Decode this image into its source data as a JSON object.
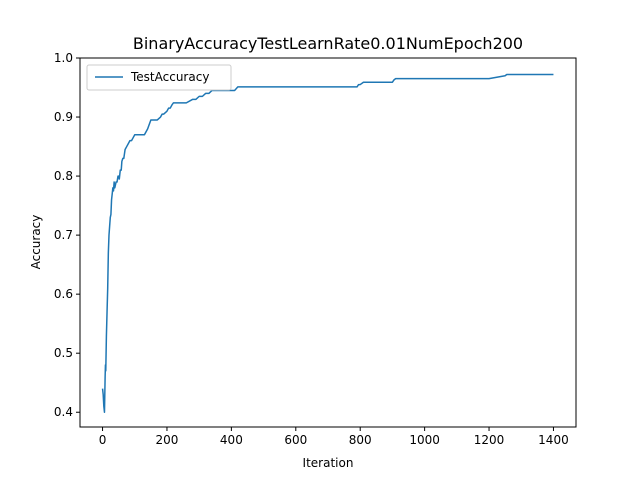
{
  "chart_data": {
    "type": "line",
    "title": "BinaryAccuracyTestLearnRate0.01NumEpoch200",
    "xlabel": "Iteration",
    "ylabel": "Accuracy",
    "xlim": [
      -70,
      1470
    ],
    "ylim": [
      0.375,
      1.0
    ],
    "xticks": [
      0,
      200,
      400,
      600,
      800,
      1000,
      1200,
      1400
    ],
    "yticks": [
      0.4,
      0.5,
      0.6,
      0.7,
      0.8,
      0.9,
      1.0
    ],
    "xtick_labels": [
      "0",
      "200",
      "400",
      "600",
      "800",
      "1000",
      "1200",
      "1400"
    ],
    "ytick_labels": [
      "0.4",
      "0.5",
      "0.6",
      "0.7",
      "0.8",
      "0.9",
      "1.0"
    ],
    "grid": false,
    "legend_position": "top-left",
    "series": [
      {
        "name": "TestAccuracy",
        "color": "#1f77b4",
        "x": [
          0,
          2,
          4,
          6,
          8,
          9,
          10,
          12,
          14,
          16,
          18,
          20,
          22,
          24,
          26,
          28,
          30,
          32,
          34,
          36,
          38,
          40,
          42,
          45,
          48,
          50,
          52,
          55,
          58,
          60,
          63,
          66,
          70,
          75,
          80,
          85,
          90,
          95,
          100,
          110,
          120,
          130,
          140,
          150,
          155,
          160,
          170,
          180,
          185,
          190,
          200,
          205,
          210,
          215,
          220,
          240,
          260,
          280,
          290,
          300,
          310,
          320,
          330,
          340,
          350,
          380,
          410,
          420,
          440,
          500,
          600,
          700,
          790,
          795,
          800,
          810,
          820,
          840,
          900,
          905,
          910,
          950,
          1000,
          1100,
          1200,
          1250,
          1255,
          1260,
          1300,
          1350,
          1400
        ],
        "y": [
          0.44,
          0.43,
          0.41,
          0.4,
          0.46,
          0.48,
          0.47,
          0.53,
          0.57,
          0.61,
          0.67,
          0.7,
          0.715,
          0.73,
          0.735,
          0.76,
          0.77,
          0.78,
          0.775,
          0.79,
          0.78,
          0.785,
          0.79,
          0.79,
          0.8,
          0.8,
          0.795,
          0.81,
          0.81,
          0.825,
          0.83,
          0.83,
          0.845,
          0.85,
          0.855,
          0.86,
          0.86,
          0.865,
          0.87,
          0.87,
          0.87,
          0.87,
          0.88,
          0.895,
          0.895,
          0.895,
          0.895,
          0.9,
          0.905,
          0.905,
          0.91,
          0.915,
          0.915,
          0.92,
          0.924,
          0.924,
          0.924,
          0.93,
          0.93,
          0.935,
          0.935,
          0.94,
          0.94,
          0.945,
          0.945,
          0.945,
          0.945,
          0.951,
          0.951,
          0.951,
          0.951,
          0.951,
          0.951,
          0.955,
          0.955,
          0.959,
          0.959,
          0.959,
          0.959,
          0.963,
          0.965,
          0.965,
          0.965,
          0.965,
          0.965,
          0.97,
          0.972,
          0.972,
          0.972,
          0.972,
          0.972
        ]
      }
    ]
  }
}
